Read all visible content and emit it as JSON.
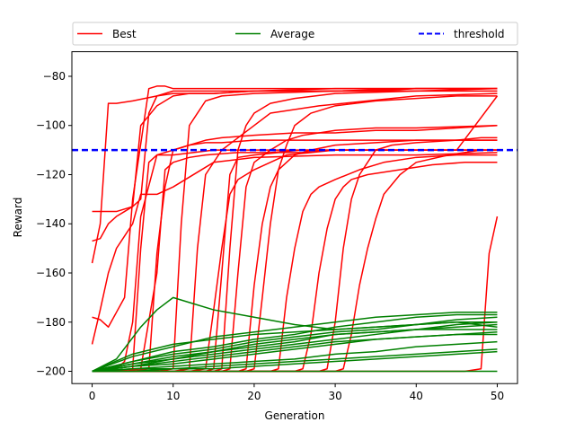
{
  "chart_data": {
    "type": "line",
    "xlabel": "Generation",
    "ylabel": "Reward",
    "xlim": [
      -2.5,
      52.5
    ],
    "ylim": [
      -205,
      -70
    ],
    "x_ticks": [
      0,
      10,
      20,
      30,
      40,
      50
    ],
    "y_ticks": [
      -200,
      -180,
      -160,
      -140,
      -120,
      -100,
      -80
    ],
    "x_tick_labels": [
      "0",
      "10",
      "20",
      "30",
      "40",
      "50"
    ],
    "y_tick_labels": [
      "−200",
      "−180",
      "−160",
      "−140",
      "−120",
      "−100",
      "−80"
    ],
    "grid": false,
    "legend_placement": "top, above plot, 3 columns",
    "legend": [
      {
        "name": "Best",
        "color": "#ff0000",
        "style": "solid"
      },
      {
        "name": "Average",
        "color": "#008000",
        "style": "solid"
      },
      {
        "name": "threshold",
        "color": "#0000ff",
        "style": "dashed"
      }
    ],
    "threshold": {
      "name": "threshold",
      "y": -110,
      "color": "#0000ff"
    },
    "best_series": [
      {
        "name": "Best",
        "x": [
          0,
          1,
          2,
          3,
          4,
          5,
          6,
          8,
          10,
          12,
          15,
          20,
          25,
          30,
          35,
          40,
          45,
          50
        ],
        "y": [
          -135,
          -135,
          -135,
          -135,
          -134,
          -133,
          -100,
          -92,
          -88,
          -87,
          -87,
          -86,
          -86,
          -86,
          -86,
          -85,
          -85,
          -85
        ]
      },
      {
        "name": "Best",
        "x": [
          0,
          1,
          2,
          3,
          4,
          5,
          6,
          7,
          8,
          10,
          14,
          20,
          30,
          40,
          50
        ],
        "y": [
          -147,
          -146,
          -140,
          -137,
          -135,
          -133,
          -130,
          -95,
          -88,
          -86,
          -86,
          -86,
          -85,
          -85,
          -85
        ]
      },
      {
        "name": "Best",
        "x": [
          0,
          1,
          2,
          3,
          5,
          8,
          10,
          15,
          20,
          30,
          40,
          50
        ],
        "y": [
          -156,
          -140,
          -91,
          -91,
          -90,
          -88,
          -87,
          -87,
          -86,
          -86,
          -85,
          -85
        ]
      },
      {
        "name": "Best",
        "x": [
          0,
          1,
          2,
          3,
          4,
          5,
          7,
          8,
          9,
          10,
          15,
          20,
          30,
          40,
          50
        ],
        "y": [
          -178,
          -179,
          -182,
          -176,
          -170,
          -130,
          -85,
          -84,
          -84,
          -85,
          -85,
          -85,
          -85,
          -85,
          -85
        ]
      },
      {
        "name": "Best",
        "x": [
          0,
          1,
          2,
          3,
          4,
          5,
          6,
          8,
          10,
          15,
          20,
          30,
          40,
          50
        ],
        "y": [
          -189,
          -175,
          -160,
          -150,
          -145,
          -140,
          -128,
          -128,
          -125,
          -115,
          -113,
          -112,
          -112,
          -111
        ]
      },
      {
        "name": "Best",
        "x": [
          0,
          1,
          2,
          3,
          4,
          5,
          6,
          8,
          10,
          12,
          14,
          16,
          20,
          25,
          30,
          35,
          40,
          45,
          50
        ],
        "y": [
          -200,
          -200,
          -200,
          -199,
          -196,
          -180,
          -137,
          -112,
          -110,
          -108,
          -106,
          -105,
          -104,
          -103,
          -103,
          -102,
          -102,
          -101,
          -100
        ]
      },
      {
        "name": "Best",
        "x": [
          0,
          3,
          5,
          6,
          7,
          8,
          10,
          15,
          20,
          25,
          30,
          40,
          50
        ],
        "y": [
          -200,
          -200,
          -199,
          -150,
          -115,
          -112,
          -112,
          -110,
          -110,
          -110,
          -110,
          -110,
          -110
        ]
      },
      {
        "name": "Best",
        "x": [
          0,
          4,
          6,
          8,
          9,
          10,
          12,
          14,
          18,
          22,
          26,
          30,
          35,
          40,
          45,
          50
        ],
        "y": [
          -200,
          -200,
          -199,
          -160,
          -118,
          -115,
          -113,
          -112,
          -111,
          -111,
          -110,
          -110,
          -110,
          -110,
          -110,
          -88
        ]
      },
      {
        "name": "Best",
        "x": [
          0,
          5,
          7,
          8,
          9,
          10,
          12,
          14,
          16,
          20,
          25,
          30,
          35,
          40,
          45,
          48,
          50
        ],
        "y": [
          -200,
          -200,
          -199,
          -152,
          -125,
          -110,
          -108,
          -107,
          -107,
          -106,
          -106,
          -106,
          -106,
          -106,
          -106,
          -105,
          -105
        ]
      },
      {
        "name": "Best",
        "x": [
          0,
          8,
          10,
          11,
          12,
          13,
          14,
          16,
          20,
          30,
          40,
          50
        ],
        "y": [
          -200,
          -200,
          -199,
          -140,
          -100,
          -95,
          -90,
          -88,
          -87,
          -86,
          -86,
          -85
        ]
      },
      {
        "name": "Best",
        "x": [
          0,
          10,
          12,
          13,
          14,
          16,
          18,
          22,
          28,
          34,
          40,
          50
        ],
        "y": [
          -200,
          -200,
          -199,
          -150,
          -120,
          -110,
          -105,
          -95,
          -92,
          -90,
          -88,
          -87
        ]
      },
      {
        "name": "Best",
        "x": [
          0,
          12,
          14,
          15,
          16,
          17,
          18,
          20,
          22,
          24,
          30,
          40,
          50
        ],
        "y": [
          -200,
          -200,
          -199,
          -175,
          -150,
          -128,
          -122,
          -118,
          -115,
          -112,
          -110,
          -110,
          -110
        ]
      },
      {
        "name": "Best",
        "x": [
          0,
          14,
          15,
          16,
          17,
          18,
          20,
          23,
          26,
          30,
          34,
          36,
          40,
          45,
          50
        ],
        "y": [
          -200,
          -200,
          -199,
          -160,
          -120,
          -113,
          -112,
          -111,
          -111,
          -110,
          -110,
          -110,
          -110,
          -110,
          -110
        ]
      },
      {
        "name": "Best",
        "x": [
          0,
          15,
          16,
          17,
          18,
          19,
          20,
          22,
          25,
          30,
          40,
          50
        ],
        "y": [
          -200,
          -200,
          -199,
          -150,
          -110,
          -100,
          -95,
          -91,
          -89,
          -87,
          -86,
          -86
        ]
      },
      {
        "name": "Best",
        "x": [
          0,
          16,
          17,
          18,
          19,
          20,
          22,
          24,
          26,
          28,
          30,
          35,
          40,
          50
        ],
        "y": [
          -200,
          -200,
          -199,
          -160,
          -125,
          -115,
          -110,
          -106,
          -104,
          -103,
          -102,
          -101,
          -101,
          -100
        ]
      },
      {
        "name": "Best",
        "x": [
          0,
          18,
          19,
          20,
          21,
          22,
          23,
          24,
          25,
          27,
          30,
          35,
          40,
          50
        ],
        "y": [
          -200,
          -200,
          -199,
          -165,
          -140,
          -125,
          -118,
          -115,
          -112,
          -110,
          -108,
          -107,
          -106,
          -106
        ]
      },
      {
        "name": "Best",
        "x": [
          0,
          19,
          20,
          21,
          22,
          23,
          24,
          25,
          27,
          30,
          35,
          40,
          45,
          50
        ],
        "y": [
          -200,
          -200,
          -199,
          -170,
          -140,
          -118,
          -108,
          -100,
          -95,
          -92,
          -90,
          -89,
          -88,
          -88
        ]
      },
      {
        "name": "Best",
        "x": [
          0,
          22,
          23,
          24,
          25,
          26,
          27,
          28,
          30,
          33,
          36,
          40,
          45,
          50
        ],
        "y": [
          -200,
          -200,
          -199,
          -170,
          -150,
          -135,
          -128,
          -125,
          -122,
          -118,
          -115,
          -113,
          -112,
          -112
        ]
      },
      {
        "name": "Best",
        "x": [
          0,
          25,
          26,
          27,
          28,
          29,
          30,
          31,
          32,
          34,
          38,
          42,
          46,
          50
        ],
        "y": [
          -200,
          -200,
          -199,
          -185,
          -160,
          -142,
          -130,
          -125,
          -122,
          -120,
          -118,
          -116,
          -115,
          -115
        ]
      },
      {
        "name": "Best",
        "x": [
          0,
          28,
          29,
          30,
          31,
          32,
          33,
          34,
          35,
          37,
          40,
          45,
          50
        ],
        "y": [
          -200,
          -200,
          -199,
          -180,
          -150,
          -130,
          -120,
          -115,
          -110,
          -108,
          -107,
          -106,
          -106
        ]
      },
      {
        "name": "Best",
        "x": [
          0,
          30,
          31,
          32,
          33,
          34,
          35,
          36,
          38,
          40,
          44,
          48,
          50
        ],
        "y": [
          -200,
          -200,
          -199,
          -185,
          -165,
          -150,
          -138,
          -128,
          -120,
          -115,
          -112,
          -110,
          -110
        ]
      },
      {
        "name": "Best",
        "x": [
          0,
          10,
          15,
          20,
          25,
          30,
          32,
          35,
          38,
          40,
          42,
          44,
          46,
          48,
          49,
          50
        ],
        "y": [
          -200,
          -200,
          -200,
          -200,
          -200,
          -200,
          -200,
          -200,
          -200,
          -200,
          -200,
          -200,
          -200,
          -199,
          -152,
          -137
        ]
      }
    ],
    "average_series": [
      {
        "name": "Average",
        "x": [
          0,
          5,
          10,
          15,
          20,
          25,
          30,
          35,
          40,
          45,
          50
        ],
        "y": [
          -200,
          -194,
          -190,
          -186,
          -184,
          -182,
          -180,
          -178,
          -177,
          -176,
          -176
        ]
      },
      {
        "name": "Average",
        "x": [
          0,
          5,
          10,
          15,
          20,
          25,
          30,
          35,
          40,
          45,
          50
        ],
        "y": [
          -200,
          -197,
          -195,
          -193,
          -191,
          -189,
          -187,
          -185,
          -183,
          -181,
          -180
        ]
      },
      {
        "name": "Average",
        "x": [
          0,
          5,
          10,
          15,
          20,
          25,
          30,
          35,
          40,
          45,
          50
        ],
        "y": [
          -200,
          -196,
          -193,
          -191,
          -188,
          -186,
          -184,
          -183,
          -181,
          -179,
          -178
        ]
      },
      {
        "name": "Average",
        "x": [
          0,
          5,
          10,
          15,
          20,
          25,
          30,
          35,
          40,
          45,
          50
        ],
        "y": [
          -200,
          -198,
          -197,
          -195,
          -193,
          -191,
          -189,
          -187,
          -186,
          -185,
          -184
        ]
      },
      {
        "name": "Average",
        "x": [
          0,
          5,
          10,
          15,
          20,
          25,
          30,
          35,
          40,
          45,
          50
        ],
        "y": [
          -200,
          -199,
          -198,
          -197,
          -196,
          -195,
          -193,
          -192,
          -190,
          -189,
          -188
        ]
      },
      {
        "name": "Average",
        "x": [
          0,
          5,
          10,
          15,
          20,
          25,
          30,
          35,
          40,
          45,
          50
        ],
        "y": [
          -200,
          -199,
          -199,
          -198,
          -197,
          -196,
          -195,
          -194,
          -193,
          -192,
          -191
        ]
      },
      {
        "name": "Average",
        "x": [
          0,
          3,
          6,
          8,
          10,
          12,
          15,
          20,
          25,
          30,
          35,
          40,
          45,
          50
        ],
        "y": [
          -200,
          -195,
          -182,
          -175,
          -170,
          -172,
          -175,
          -178,
          -181,
          -183,
          -182,
          -181,
          -180,
          -182
        ]
      },
      {
        "name": "Average",
        "x": [
          0,
          5,
          10,
          15,
          20,
          25,
          30,
          35,
          40,
          45,
          50
        ],
        "y": [
          -200,
          -193,
          -189,
          -187,
          -185,
          -184,
          -183,
          -182,
          -181,
          -180,
          -180
        ]
      },
      {
        "name": "Average",
        "x": [
          0,
          5,
          10,
          15,
          20,
          25,
          30,
          35,
          40,
          45,
          50
        ],
        "y": [
          -200,
          -198,
          -196,
          -194,
          -192,
          -190,
          -188,
          -187,
          -186,
          -185,
          -185
        ]
      },
      {
        "name": "Average",
        "x": [
          0,
          5,
          10,
          15,
          20,
          25,
          30,
          35,
          40,
          45,
          50
        ],
        "y": [
          -200,
          -197,
          -194,
          -192,
          -190,
          -188,
          -185,
          -184,
          -183,
          -182,
          -181
        ]
      },
      {
        "name": "Average",
        "x": [
          0,
          5,
          10,
          15,
          20,
          25,
          30,
          35,
          40,
          45,
          50
        ],
        "y": [
          -200,
          -200,
          -199,
          -199,
          -198,
          -197,
          -196,
          -195,
          -194,
          -193,
          -192
        ]
      },
      {
        "name": "Average",
        "x": [
          0,
          5,
          10,
          15,
          20,
          25,
          30,
          35,
          40,
          45,
          50
        ],
        "y": [
          -200,
          -196,
          -192,
          -190,
          -187,
          -185,
          -182,
          -180,
          -178,
          -177,
          -177
        ]
      },
      {
        "name": "Average",
        "x": [
          0,
          10,
          20,
          30,
          40,
          50
        ],
        "y": [
          -200,
          -200,
          -200,
          -200,
          -200,
          -200
        ]
      },
      {
        "name": "Average",
        "x": [
          0,
          5,
          10,
          15,
          20,
          25,
          30,
          35,
          40,
          45,
          50
        ],
        "y": [
          -200,
          -198,
          -195,
          -192,
          -189,
          -187,
          -185,
          -184,
          -183,
          -183,
          -183
        ]
      }
    ]
  }
}
